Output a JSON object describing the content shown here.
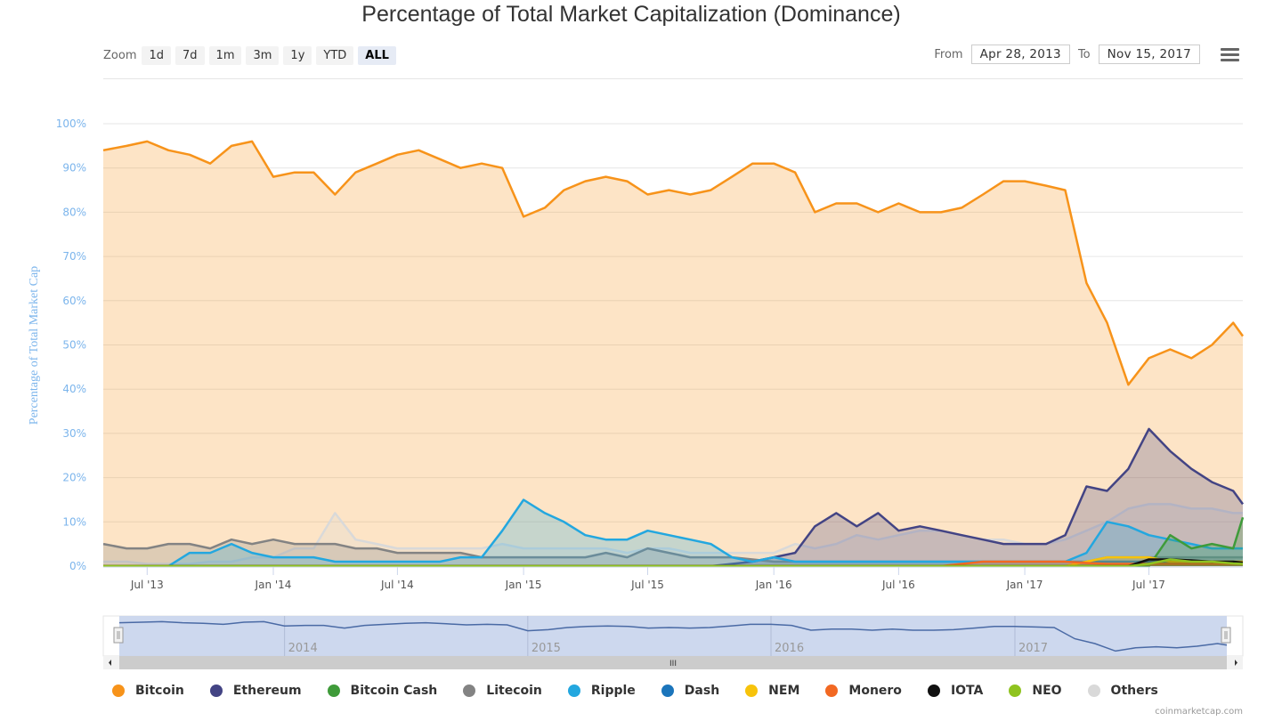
{
  "title": "Percentage of Total Market Capitalization (Dominance)",
  "zoom": {
    "label": "Zoom",
    "buttons": [
      "1d",
      "7d",
      "1m",
      "3m",
      "1y",
      "YTD",
      "ALL"
    ],
    "active": "ALL"
  },
  "range": {
    "from_label": "From",
    "from_value": "Apr 28, 2013",
    "to_label": "To",
    "to_value": "Nov 15, 2017"
  },
  "menu_icon": "hamburger-menu-icon",
  "credits": "coinmarketcap.com",
  "navigator": {
    "year_labels": [
      "2014",
      "2015",
      "2016",
      "2017"
    ],
    "scroll_handle_glyph": "III"
  },
  "chart_data": {
    "type": "area",
    "title": "Percentage of Total Market Capitalization (Dominance)",
    "xlabel": "",
    "ylabel": "Percentage of Total Market Cap",
    "ylim": [
      0,
      100
    ],
    "yticks": [
      "0%",
      "10%",
      "20%",
      "30%",
      "40%",
      "50%",
      "60%",
      "70%",
      "80%",
      "90%",
      "100%"
    ],
    "xticks": [
      "Jul '13",
      "Jan '14",
      "Jul '14",
      "Jan '15",
      "Jul '15",
      "Jan '16",
      "Jul '16",
      "Jan '17",
      "Jul '17"
    ],
    "grid": true,
    "legend": "bottom",
    "x": [
      "2013-04-28",
      "2013-06-01",
      "2013-07-01",
      "2013-08-01",
      "2013-09-01",
      "2013-10-01",
      "2013-11-01",
      "2013-12-01",
      "2014-01-01",
      "2014-02-01",
      "2014-03-01",
      "2014-04-01",
      "2014-05-01",
      "2014-06-01",
      "2014-07-01",
      "2014-08-01",
      "2014-09-01",
      "2014-10-01",
      "2014-11-01",
      "2014-12-01",
      "2015-01-01",
      "2015-02-01",
      "2015-03-01",
      "2015-04-01",
      "2015-05-01",
      "2015-06-01",
      "2015-07-01",
      "2015-08-01",
      "2015-09-01",
      "2015-10-01",
      "2015-11-01",
      "2015-12-01",
      "2016-01-01",
      "2016-02-01",
      "2016-03-01",
      "2016-04-01",
      "2016-05-01",
      "2016-06-01",
      "2016-07-01",
      "2016-08-01",
      "2016-09-01",
      "2016-10-01",
      "2016-11-01",
      "2016-12-01",
      "2017-01-01",
      "2017-02-01",
      "2017-03-01",
      "2017-04-01",
      "2017-05-01",
      "2017-06-01",
      "2017-07-01",
      "2017-08-01",
      "2017-09-01",
      "2017-10-01",
      "2017-11-01",
      "2017-11-15"
    ],
    "series": [
      {
        "name": "Bitcoin",
        "color": "#f7931a",
        "values": [
          94,
          95,
          96,
          94,
          93,
          91,
          95,
          96,
          88,
          89,
          89,
          84,
          89,
          91,
          93,
          94,
          92,
          90,
          91,
          90,
          79,
          81,
          85,
          87,
          88,
          87,
          84,
          85,
          84,
          85,
          88,
          91,
          91,
          89,
          80,
          82,
          82,
          80,
          82,
          80,
          80,
          81,
          84,
          87,
          87,
          86,
          85,
          64,
          55,
          41,
          47,
          49,
          47,
          50,
          55,
          52
        ]
      },
      {
        "name": "Ethereum",
        "color": "#434484",
        "values": [
          0,
          0,
          0,
          0,
          0,
          0,
          0,
          0,
          0,
          0,
          0,
          0,
          0,
          0,
          0,
          0,
          0,
          0,
          0,
          0,
          0,
          0,
          0,
          0,
          0,
          0,
          0,
          0,
          0,
          0,
          0.5,
          1,
          2,
          3,
          9,
          12,
          9,
          12,
          8,
          9,
          8,
          7,
          6,
          5,
          5,
          5,
          7,
          18,
          17,
          22,
          31,
          26,
          22,
          19,
          17,
          14
        ]
      },
      {
        "name": "Bitcoin Cash",
        "color": "#3f9b3a",
        "values": [
          0,
          0,
          0,
          0,
          0,
          0,
          0,
          0,
          0,
          0,
          0,
          0,
          0,
          0,
          0,
          0,
          0,
          0,
          0,
          0,
          0,
          0,
          0,
          0,
          0,
          0,
          0,
          0,
          0,
          0,
          0,
          0,
          0,
          0,
          0,
          0,
          0,
          0,
          0,
          0,
          0,
          0,
          0,
          0,
          0,
          0,
          0,
          0,
          0,
          0,
          0,
          7,
          4,
          5,
          4,
          11
        ]
      },
      {
        "name": "Litecoin",
        "color": "#838383",
        "values": [
          5,
          4,
          4,
          5,
          5,
          4,
          6,
          5,
          6,
          5,
          5,
          5,
          4,
          4,
          3,
          3,
          3,
          3,
          2,
          2,
          2,
          2,
          2,
          2,
          3,
          2,
          4,
          3,
          2,
          2,
          2,
          1.5,
          1,
          1,
          1,
          1,
          1,
          1,
          1,
          1,
          1,
          1,
          1,
          1,
          1,
          1,
          1,
          1,
          2,
          2,
          2,
          2,
          2,
          2,
          2,
          2
        ]
      },
      {
        "name": "Ripple",
        "color": "#23a7df",
        "values": [
          0,
          0,
          0,
          0,
          3,
          3,
          5,
          3,
          2,
          2,
          2,
          1,
          1,
          1,
          1,
          1,
          1,
          2,
          2,
          8,
          15,
          12,
          10,
          7,
          6,
          6,
          8,
          7,
          6,
          5,
          2,
          1,
          2,
          1,
          1,
          1,
          1,
          1,
          1,
          1,
          1,
          1,
          1,
          1,
          1,
          1,
          1,
          3,
          10,
          9,
          7,
          6,
          5,
          4,
          4,
          4
        ]
      },
      {
        "name": "Dash",
        "color": "#1b75bb",
        "values": [
          0,
          0,
          0,
          0,
          0,
          0,
          0,
          0,
          0,
          0,
          0,
          0,
          0,
          0,
          0,
          0,
          0,
          0,
          0,
          0,
          0,
          0,
          0,
          0,
          0,
          0,
          0,
          0,
          0,
          0,
          0,
          0,
          0,
          0,
          0,
          0,
          0,
          0,
          0,
          0,
          0,
          0,
          0,
          0,
          0,
          0,
          0,
          1,
          1,
          1,
          1,
          1,
          1,
          1,
          1,
          1
        ]
      },
      {
        "name": "NEM",
        "color": "#f7c30b",
        "values": [
          0,
          0,
          0,
          0,
          0,
          0,
          0,
          0,
          0,
          0,
          0,
          0,
          0,
          0,
          0,
          0,
          0,
          0,
          0,
          0,
          0,
          0,
          0,
          0,
          0,
          0,
          0,
          0,
          0,
          0,
          0,
          0,
          0,
          0,
          0,
          0,
          0,
          0,
          0,
          0,
          0,
          0,
          0,
          0,
          0,
          0,
          0,
          1,
          2,
          2,
          2,
          1,
          1,
          1,
          1,
          1
        ]
      },
      {
        "name": "Monero",
        "color": "#f26822",
        "values": [
          0,
          0,
          0,
          0,
          0,
          0,
          0,
          0,
          0,
          0,
          0,
          0,
          0,
          0,
          0,
          0,
          0,
          0,
          0,
          0,
          0,
          0,
          0,
          0,
          0,
          0,
          0,
          0,
          0,
          0,
          0,
          0,
          0,
          0,
          0,
          0,
          0,
          0,
          0,
          0,
          0,
          0.5,
          1,
          1,
          1,
          1,
          1,
          0.7,
          0.5,
          0.5,
          0.5,
          0.5,
          0.5,
          0.5,
          0.5,
          0.5
        ]
      },
      {
        "name": "IOTA",
        "color": "#111111",
        "values": [
          0,
          0,
          0,
          0,
          0,
          0,
          0,
          0,
          0,
          0,
          0,
          0,
          0,
          0,
          0,
          0,
          0,
          0,
          0,
          0,
          0,
          0,
          0,
          0,
          0,
          0,
          0,
          0,
          0,
          0,
          0,
          0,
          0,
          0,
          0,
          0,
          0,
          0,
          0,
          0,
          0,
          0,
          0,
          0,
          0,
          0,
          0,
          0,
          0,
          0,
          1.5,
          1.5,
          1.3,
          1,
          1,
          0.8
        ]
      },
      {
        "name": "NEO",
        "color": "#8fc31f",
        "values": [
          0,
          0,
          0,
          0,
          0,
          0,
          0,
          0,
          0,
          0,
          0,
          0,
          0,
          0,
          0,
          0,
          0,
          0,
          0,
          0,
          0,
          0,
          0,
          0,
          0,
          0,
          0,
          0,
          0,
          0,
          0,
          0,
          0,
          0,
          0,
          0,
          0,
          0,
          0,
          0,
          0,
          0,
          0,
          0,
          0,
          0,
          0,
          0,
          0,
          0,
          0.5,
          1.5,
          1,
          1,
          0.6,
          0.5
        ]
      },
      {
        "name": "Others",
        "color": "#d9d9d9",
        "values": [
          1,
          1,
          0.5,
          0.5,
          0.5,
          1,
          1,
          2,
          2,
          4,
          4,
          12,
          6,
          5,
          4,
          4,
          4,
          4,
          4,
          5,
          4,
          4,
          4,
          4,
          4,
          3,
          4,
          4,
          3,
          3,
          3,
          3,
          3,
          5,
          4,
          5,
          7,
          6,
          7,
          8,
          8,
          7,
          6,
          6,
          5,
          5,
          6,
          8,
          10,
          13,
          14,
          14,
          13,
          13,
          12,
          12
        ]
      }
    ]
  }
}
